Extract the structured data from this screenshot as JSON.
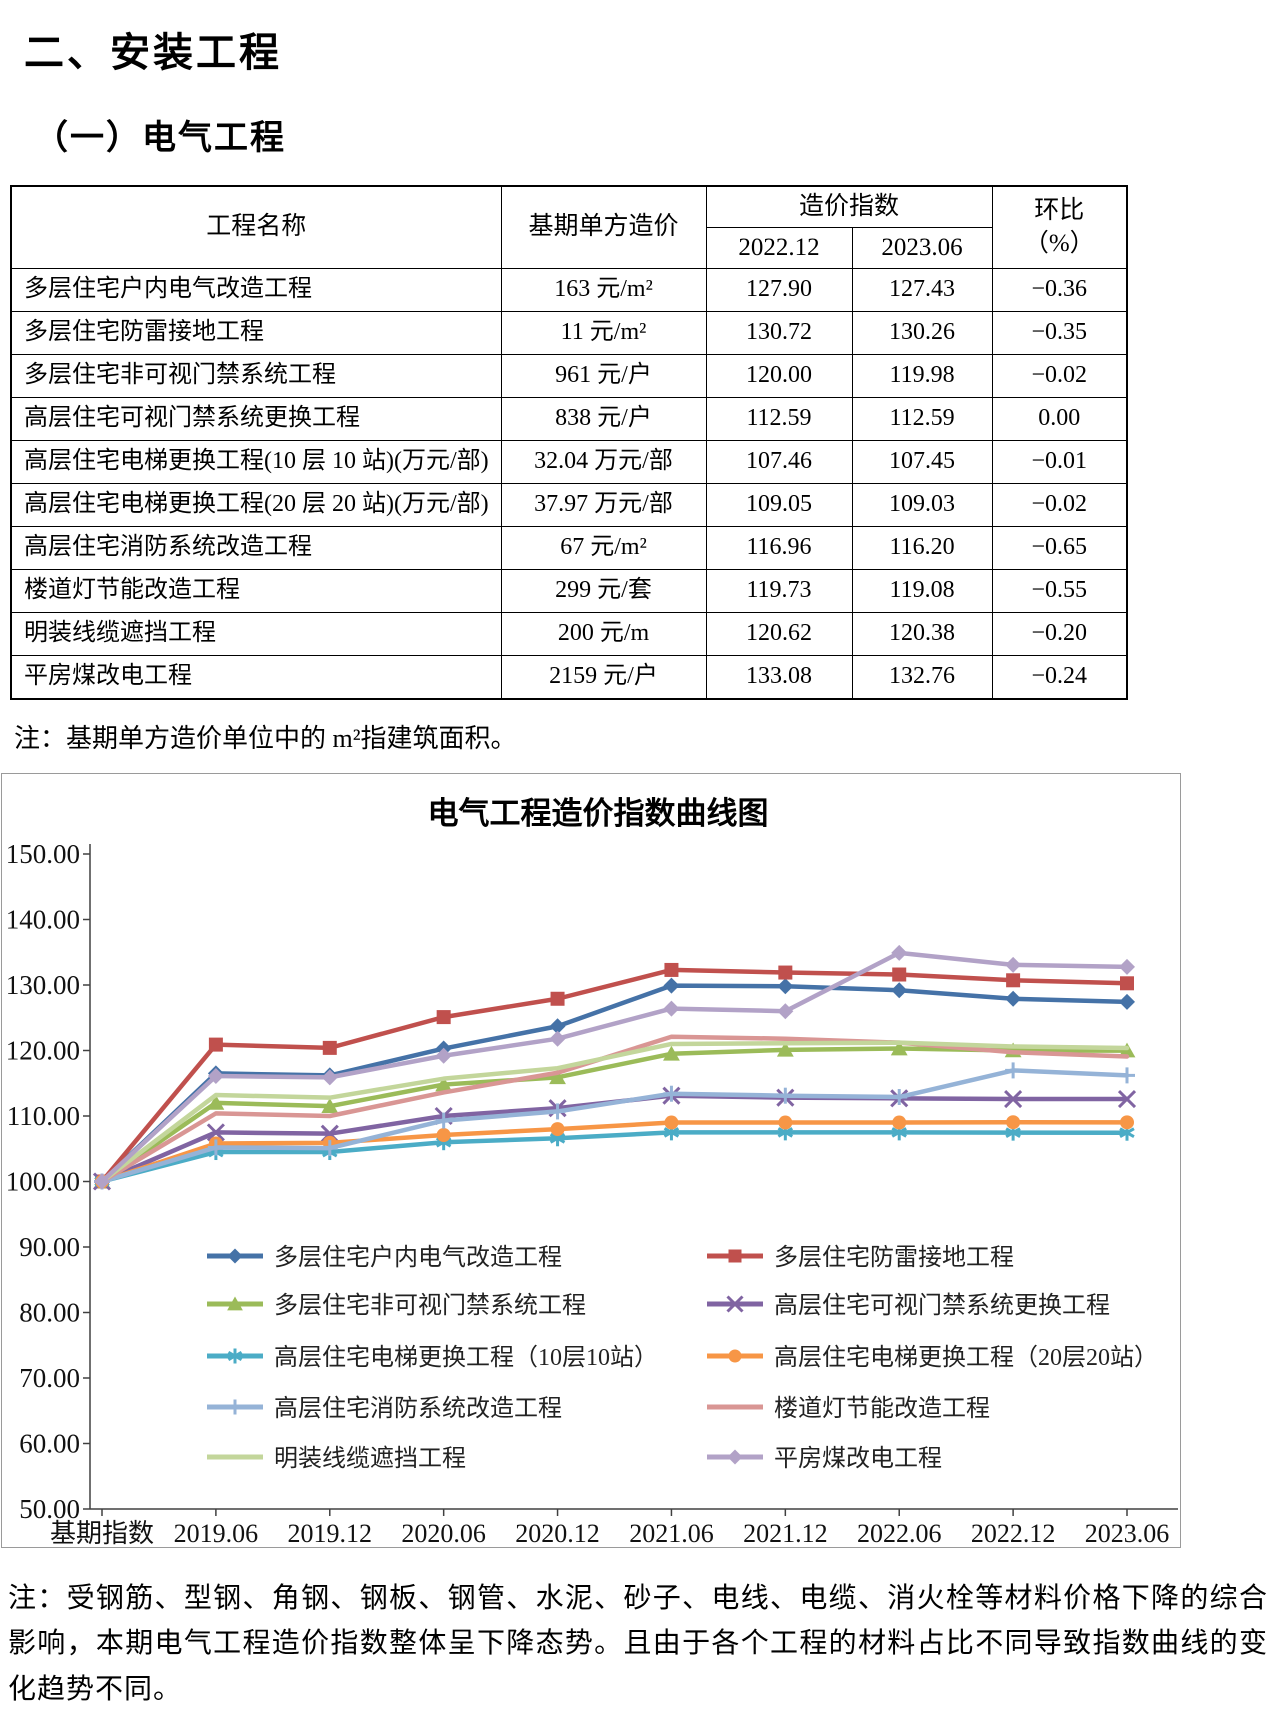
{
  "page": {
    "title": "二、安装工程",
    "subtitle": "（一）电气工程",
    "table_note": "注：基期单方造价单位中的 m²指建筑面积。",
    "bottom_note": "注：受钢筋、型钢、角钢、钢板、钢管、水泥、砂子、电线、电缆、消火栓等材料价格下降的综合影响，本期电气工程造价指数整体呈下降态势。且由于各个工程的材料占比不同导致指数曲线的变化趋势不同。"
  },
  "table": {
    "headers": {
      "project_name": "工程名称",
      "base_unit_cost": "基期单方造价",
      "cost_index": "造价指数",
      "period_1": "2022.12",
      "period_2": "2023.06",
      "mom_line1": "环比",
      "mom_line2": "（%）"
    },
    "rows": [
      {
        "name": "多层住宅户内电气改造工程",
        "base": "163 元/m²",
        "p1": "127.90",
        "p2": "127.43",
        "mom": "−0.36"
      },
      {
        "name": "多层住宅防雷接地工程",
        "base": "11 元/m²",
        "p1": "130.72",
        "p2": "130.26",
        "mom": "−0.35"
      },
      {
        "name": "多层住宅非可视门禁系统工程",
        "base": "961 元/户",
        "p1": "120.00",
        "p2": "119.98",
        "mom": "−0.02"
      },
      {
        "name": "高层住宅可视门禁系统更换工程",
        "base": "838 元/户",
        "p1": "112.59",
        "p2": "112.59",
        "mom": "0.00"
      },
      {
        "name": "高层住宅电梯更换工程(10 层 10 站)(万元/部)",
        "base": "32.04 万元/部",
        "p1": "107.46",
        "p2": "107.45",
        "mom": "−0.01"
      },
      {
        "name": "高层住宅电梯更换工程(20 层 20 站)(万元/部)",
        "base": "37.97 万元/部",
        "p1": "109.05",
        "p2": "109.03",
        "mom": "−0.02"
      },
      {
        "name": "高层住宅消防系统改造工程",
        "base": "67 元/m²",
        "p1": "116.96",
        "p2": "116.20",
        "mom": "−0.65"
      },
      {
        "name": "楼道灯节能改造工程",
        "base": "299 元/套",
        "p1": "119.73",
        "p2": "119.08",
        "mom": "−0.55"
      },
      {
        "name": "明装线缆遮挡工程",
        "base": "200 元/m",
        "p1": "120.62",
        "p2": "120.38",
        "mom": "−0.20"
      },
      {
        "name": "平房煤改电工程",
        "base": "2159 元/户",
        "p1": "133.08",
        "p2": "132.76",
        "mom": "−0.24"
      }
    ]
  },
  "chart_data": {
    "type": "line",
    "title": "电气工程造价指数曲线图",
    "categories": [
      "基期指数",
      "2019.06",
      "2019.12",
      "2020.06",
      "2020.12",
      "2021.06",
      "2021.12",
      "2022.06",
      "2022.12",
      "2023.06"
    ],
    "ylim": [
      50,
      150
    ],
    "ytick_step": 10,
    "ytick_labels": [
      "150.00",
      "140.00",
      "130.00",
      "120.00",
      "110.00",
      "100.00",
      "90.00",
      "80.00",
      "70.00",
      "60.00",
      "50.00"
    ],
    "grid": false,
    "legend_position": "inside-bottom-left",
    "series": [
      {
        "name": "多层住宅户内电气改造工程",
        "color": "#4572A7",
        "marker": "diamond",
        "values": [
          100,
          116.5,
          116.2,
          120.3,
          123.7,
          129.9,
          129.8,
          129.2,
          127.9,
          127.43
        ]
      },
      {
        "name": "多层住宅防雷接地工程",
        "color": "#C0504D",
        "marker": "square",
        "values": [
          100,
          120.9,
          120.4,
          125.1,
          127.9,
          132.3,
          131.9,
          131.6,
          130.72,
          130.26
        ]
      },
      {
        "name": "多层住宅非可视门禁系统工程",
        "color": "#9BBB59",
        "marker": "triangle",
        "values": [
          100,
          112.0,
          111.5,
          114.8,
          115.9,
          119.5,
          120.1,
          120.3,
          120.0,
          119.98
        ]
      },
      {
        "name": "高层住宅可视门禁系统更换工程",
        "color": "#8064A2",
        "marker": "x",
        "values": [
          100,
          107.5,
          107.3,
          110.0,
          111.2,
          113.1,
          112.8,
          112.7,
          112.59,
          112.59
        ]
      },
      {
        "name": "高层住宅电梯更换工程（10层10站）",
        "color": "#4BACC6",
        "marker": "asterisk",
        "values": [
          100,
          104.5,
          104.5,
          106.0,
          106.6,
          107.5,
          107.5,
          107.5,
          107.46,
          107.45
        ]
      },
      {
        "name": "高层住宅电梯更换工程（20层20站）",
        "color": "#F79646",
        "marker": "circle",
        "values": [
          100,
          105.8,
          105.9,
          107.1,
          108.0,
          109.0,
          109.0,
          109.0,
          109.05,
          109.03
        ]
      },
      {
        "name": "高层住宅消防系统改造工程",
        "color": "#95B3D7",
        "marker": "plus",
        "values": [
          100,
          105.2,
          105.1,
          109.3,
          110.7,
          113.4,
          113.1,
          112.9,
          116.96,
          116.2
        ]
      },
      {
        "name": "楼道灯节能改造工程",
        "color": "#D99694",
        "marker": "none",
        "values": [
          100,
          110.4,
          110.0,
          113.6,
          116.6,
          122.1,
          121.8,
          121.2,
          119.73,
          119.08
        ]
      },
      {
        "name": "明装线缆遮挡工程",
        "color": "#C3D69B",
        "marker": "none",
        "values": [
          100,
          113.2,
          112.8,
          115.7,
          117.3,
          121.0,
          121.1,
          121.2,
          120.62,
          120.38
        ]
      },
      {
        "name": "平房煤改电工程",
        "color": "#B2A2C7",
        "marker": "diamond",
        "values": [
          100,
          116.1,
          115.9,
          119.2,
          121.8,
          126.4,
          126.0,
          134.9,
          133.08,
          132.76
        ]
      }
    ]
  }
}
